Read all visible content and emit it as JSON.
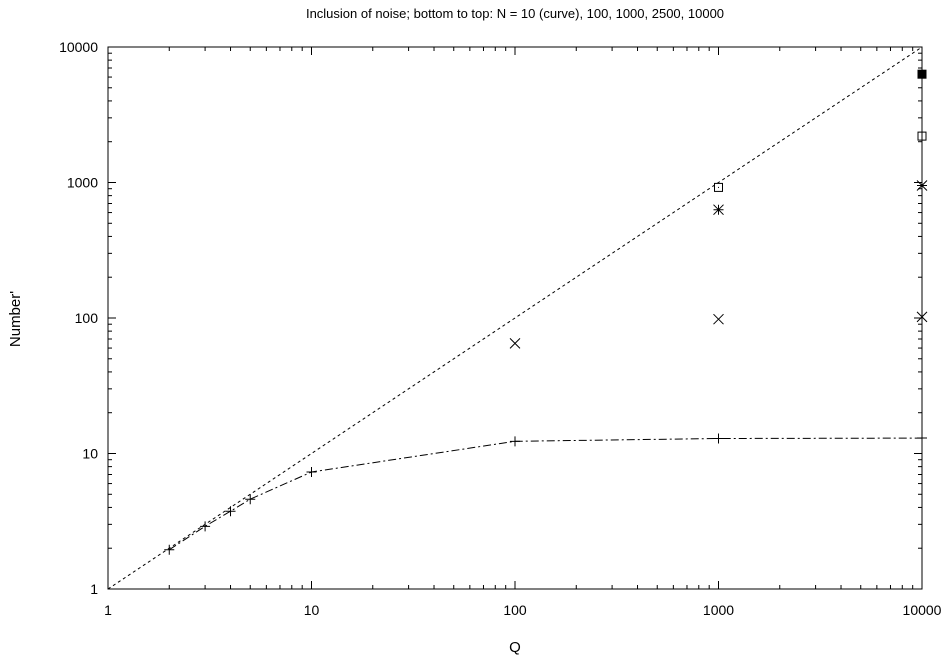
{
  "chart_data": {
    "type": "scatter",
    "title": "Inclusion of noise; bottom to top: N = 10 (curve), 100, 1000, 2500, 10000",
    "xlabel": "Q",
    "ylabel": "Number'",
    "xscale": "log",
    "yscale": "log",
    "xlim": [
      1,
      10000
    ],
    "ylim": [
      1,
      10000
    ],
    "xticks": [
      "1",
      "10",
      "100",
      "1000",
      "10000"
    ],
    "yticks": [
      "1",
      "10",
      "100",
      "1000",
      "10000"
    ],
    "grid": false,
    "legend": "none",
    "reference_line": {
      "style": "dotted",
      "points": [
        [
          1,
          1
        ],
        [
          10000,
          10000
        ]
      ]
    },
    "series": [
      {
        "marker": "plus",
        "line": "dash-dot",
        "points": [
          [
            2,
            1.95
          ],
          [
            3,
            2.9
          ],
          [
            4,
            3.75
          ],
          [
            5,
            4.6
          ],
          [
            10,
            7.3
          ],
          [
            100,
            12.3
          ],
          [
            1000,
            12.9
          ],
          [
            10000,
            13
          ]
        ]
      },
      {
        "marker": "cross",
        "line": "none",
        "points": [
          [
            100,
            65
          ],
          [
            1000,
            98
          ],
          [
            10000,
            102
          ]
        ]
      },
      {
        "marker": "star",
        "line": "none",
        "points": [
          [
            1000,
            630
          ],
          [
            10000,
            950
          ]
        ]
      },
      {
        "marker": "open-square",
        "line": "none",
        "points": [
          [
            1000,
            920
          ],
          [
            10000,
            2200
          ]
        ]
      },
      {
        "marker": "filled-square",
        "line": "none",
        "points": [
          [
            10000,
            6300
          ]
        ]
      }
    ]
  }
}
